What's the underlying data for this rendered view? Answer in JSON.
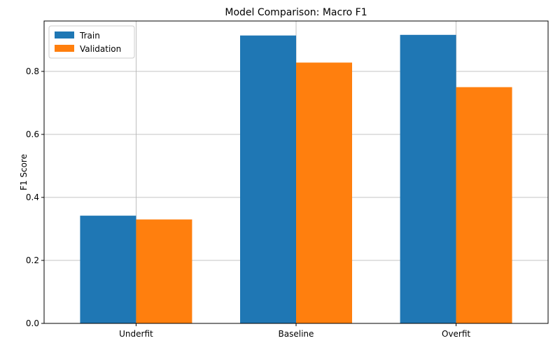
{
  "chart_data": {
    "type": "bar",
    "title": "Model Comparison: Macro F1",
    "xlabel": "",
    "ylabel": "F1 Score",
    "categories": [
      "Underfit",
      "Baseline",
      "Overfit"
    ],
    "series": [
      {
        "name": "Train",
        "color": "#1f77b4",
        "values": [
          0.342,
          0.914,
          0.916
        ]
      },
      {
        "name": "Validation",
        "color": "#ff7f0e",
        "values": [
          0.33,
          0.828,
          0.75
        ]
      }
    ],
    "ylim": [
      0,
      0.96
    ],
    "yticks": [
      0.0,
      0.2,
      0.4,
      0.6,
      0.8
    ],
    "ytick_labels": [
      "0.0",
      "0.2",
      "0.4",
      "0.6",
      "0.8"
    ],
    "grid": true,
    "legend_position": "top-left"
  }
}
